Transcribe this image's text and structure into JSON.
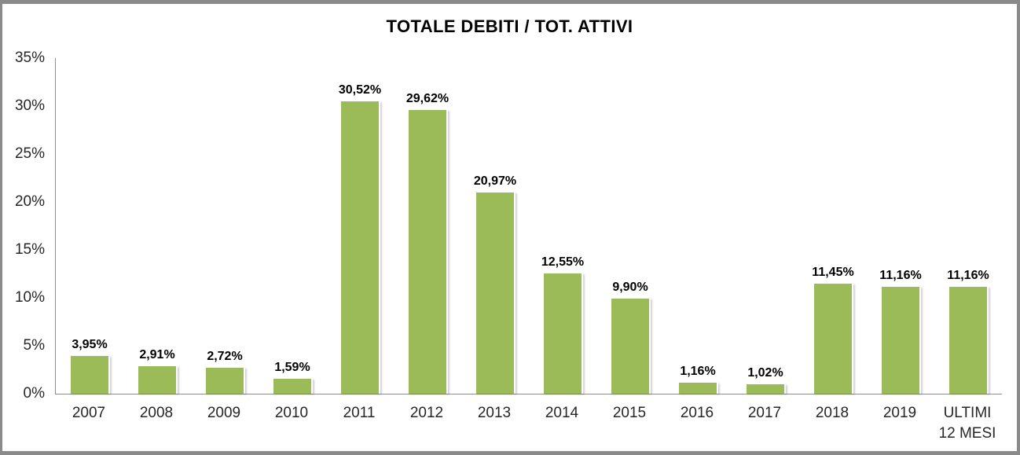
{
  "window": {
    "border_color": "#8a8a8a",
    "background": "#ffffff"
  },
  "chart_data": {
    "type": "bar",
    "title": "TOTALE DEBITI / TOT. ATTIVI",
    "categories": [
      "2007",
      "2008",
      "2009",
      "2010",
      "2011",
      "2012",
      "2013",
      "2014",
      "2015",
      "2016",
      "2017",
      "2018",
      "2019",
      "ULTIMI 12 MESI"
    ],
    "values": [
      3.95,
      2.91,
      2.72,
      1.59,
      30.52,
      29.62,
      20.97,
      12.55,
      9.9,
      1.16,
      1.02,
      11.45,
      11.16,
      11.16
    ],
    "value_labels": [
      "3,95%",
      "2,91%",
      "2,72%",
      "1,59%",
      "30,52%",
      "29,62%",
      "20,97%",
      "12,55%",
      "9,90%",
      "1,16%",
      "1,02%",
      "11,45%",
      "11,16%",
      "11,16%"
    ],
    "y_ticks": [
      "35%",
      "30%",
      "25%",
      "20%",
      "15%",
      "10%",
      "5%",
      "0%"
    ],
    "ylim": [
      0,
      35
    ],
    "xlabel": "",
    "ylabel": "",
    "bar_color": "#9BBB59",
    "bar_edge_color": "#FFFFFF",
    "axis_color": "#8F8F8F",
    "title_color": "#000000",
    "tick_color": "#262626",
    "gridlines": false,
    "legend": false
  }
}
